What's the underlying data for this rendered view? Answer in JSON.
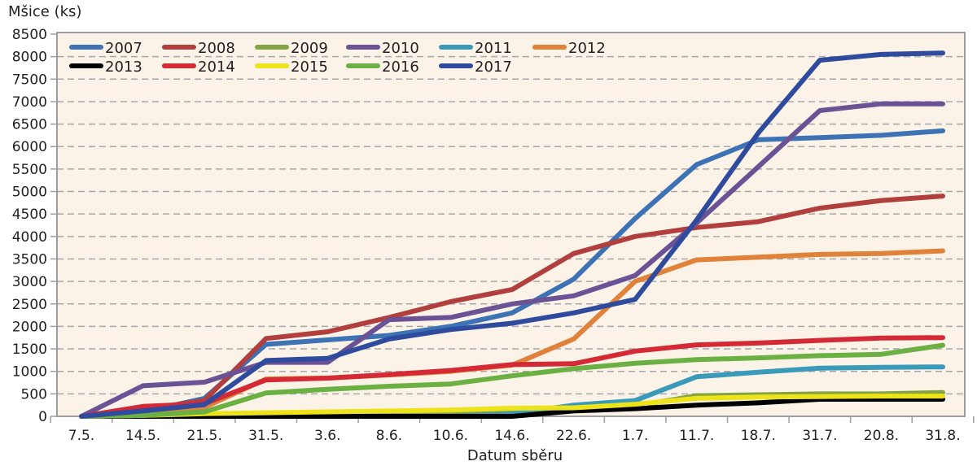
{
  "chart_data": {
    "type": "line",
    "title": "",
    "ylabel": "Mšice (ks)",
    "xlabel": "Datum sběru",
    "ylim": [
      0,
      8500
    ],
    "yticks": [
      0,
      500,
      1000,
      1500,
      2000,
      2500,
      3000,
      3500,
      4000,
      4500,
      5000,
      5500,
      6000,
      6500,
      7000,
      7500,
      8000,
      8500
    ],
    "ytick_labels": [
      "0",
      "500",
      "1000",
      "1500",
      "2000",
      "2500",
      "3000",
      "3500",
      "4000",
      "4500",
      "5000",
      "5500",
      "6000",
      "6500",
      "7000",
      "7500",
      "8000",
      "8500"
    ],
    "grid": true,
    "legend_position": "top-left",
    "categories": [
      "7.5.",
      "14.5.",
      "21.5.",
      "31.5.",
      "3.6.",
      "8.6.",
      "10.6.",
      "14.6.",
      "22.6.",
      "1.7.",
      "11.7.",
      "18.7.",
      "31.7.",
      "20.8.",
      "31.8."
    ],
    "series": [
      {
        "name": "2007",
        "color": "#3d72b4",
        "values": [
          0,
          100,
          400,
          1600,
          1700,
          1800,
          2000,
          2300,
          3050,
          4400,
          5600,
          6150,
          6200,
          6250,
          6350
        ]
      },
      {
        "name": "2008",
        "color": "#b13f3d",
        "values": [
          0,
          150,
          350,
          1730,
          1880,
          2200,
          2550,
          2820,
          3620,
          4000,
          4200,
          4330,
          4630,
          4800,
          4900
        ]
      },
      {
        "name": "2009",
        "color": "#84a441",
        "values": [
          0,
          0,
          30,
          50,
          60,
          80,
          100,
          130,
          170,
          230,
          460,
          480,
          500,
          500,
          530
        ]
      },
      {
        "name": "2010",
        "color": "#6b5294",
        "values": [
          0,
          680,
          760,
          1200,
          1200,
          2150,
          2200,
          2500,
          2680,
          3130,
          4300,
          5550,
          6800,
          6950,
          6950
        ]
      },
      {
        "name": "2011",
        "color": "#3a9ab9",
        "values": [
          0,
          0,
          0,
          0,
          0,
          0,
          0,
          50,
          250,
          350,
          880,
          980,
          1070,
          1090,
          1100
        ]
      },
      {
        "name": "2012",
        "color": "#e0823a",
        "values": [
          0,
          120,
          200,
          830,
          850,
          920,
          1000,
          1140,
          1720,
          3000,
          3480,
          3540,
          3600,
          3620,
          3680
        ]
      },
      {
        "name": "2013",
        "color": "#000000",
        "values": [
          0,
          0,
          0,
          0,
          0,
          0,
          0,
          0,
          120,
          170,
          250,
          300,
          380,
          380,
          380
        ]
      },
      {
        "name": "2014",
        "color": "#d32a36",
        "values": [
          0,
          220,
          280,
          810,
          850,
          930,
          1020,
          1150,
          1170,
          1450,
          1590,
          1630,
          1690,
          1740,
          1750
        ]
      },
      {
        "name": "2015",
        "color": "#ece31a",
        "values": [
          0,
          20,
          60,
          80,
          100,
          120,
          140,
          180,
          190,
          270,
          400,
          430,
          440,
          450,
          450
        ]
      },
      {
        "name": "2016",
        "color": "#6bb043",
        "values": [
          0,
          20,
          100,
          520,
          600,
          670,
          720,
          900,
          1060,
          1180,
          1260,
          1300,
          1350,
          1380,
          1580
        ]
      },
      {
        "name": "2017",
        "color": "#2e4b9d",
        "values": [
          0,
          120,
          260,
          1240,
          1290,
          1720,
          1930,
          2070,
          2300,
          2600,
          4370,
          6300,
          7920,
          8050,
          8080
        ]
      }
    ],
    "legend_rows": [
      [
        "2007",
        "2008",
        "2009",
        "2010",
        "2011",
        "2012"
      ],
      [
        "2013",
        "2014",
        "2015",
        "2016",
        "2017"
      ]
    ],
    "plot_background": "#fbf2e8",
    "gridline_color": "#a8a8a8"
  }
}
